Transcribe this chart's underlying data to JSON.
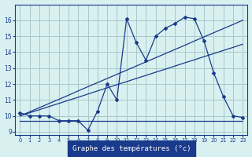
{
  "hours": [
    0,
    1,
    2,
    3,
    4,
    5,
    6,
    7,
    8,
    9,
    10,
    11,
    12,
    13,
    14,
    15,
    16,
    17,
    18,
    19,
    20,
    21,
    22,
    23
  ],
  "temp_actual": [
    10.2,
    10.0,
    10.0,
    10.0,
    9.7,
    9.7,
    9.7,
    9.1,
    10.3,
    12.0,
    11.0,
    16.1,
    14.6,
    13.5,
    15.0,
    15.5,
    15.8,
    16.2,
    16.1,
    14.7,
    12.7,
    11.2,
    10.0,
    9.9
  ],
  "temp_trend1": [
    10.0,
    10.26,
    10.52,
    10.78,
    11.04,
    11.3,
    11.57,
    11.83,
    12.09,
    12.35,
    12.61,
    12.87,
    13.13,
    13.39,
    13.65,
    13.91,
    14.17,
    14.43,
    14.7,
    14.96,
    15.22,
    15.48,
    15.74,
    16.0
  ],
  "temp_trend2": [
    10.0,
    10.2,
    10.39,
    10.59,
    10.78,
    10.98,
    11.17,
    11.37,
    11.57,
    11.76,
    11.96,
    12.15,
    12.35,
    12.54,
    12.74,
    12.93,
    13.13,
    13.33,
    13.52,
    13.72,
    13.91,
    14.11,
    14.3,
    14.5
  ],
  "temp_flat": [
    9.7,
    9.7,
    9.7,
    9.7,
    9.7,
    9.7,
    9.7,
    9.7,
    9.7,
    9.7,
    9.7,
    9.7,
    9.7,
    9.7,
    9.7,
    9.7,
    9.7,
    9.7,
    9.7,
    9.7,
    9.7,
    9.7,
    9.7,
    9.7
  ],
  "line_color": "#1a3a8c",
  "bg_color": "#d8f0f0",
  "grid_color": "#a8c8c8",
  "xlabel": "Graphe des températures (°c)",
  "ylim": [
    8.8,
    17.0
  ],
  "yticks": [
    9,
    10,
    11,
    12,
    13,
    14,
    15,
    16
  ],
  "xticks": [
    0,
    1,
    2,
    3,
    4,
    5,
    6,
    7,
    8,
    9,
    10,
    11,
    12,
    13,
    14,
    15,
    16,
    17,
    18,
    19,
    20,
    21,
    22,
    23
  ]
}
